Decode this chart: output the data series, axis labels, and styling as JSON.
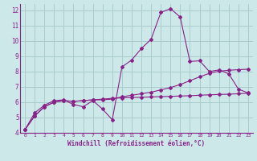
{
  "xlabel": "Windchill (Refroidissement éolien,°C)",
  "background_color": "#cce8e8",
  "grid_color": "#aacccc",
  "line_color": "#882288",
  "xlim": [
    -0.5,
    23.5
  ],
  "ylim": [
    4,
    12.4
  ],
  "xticks": [
    0,
    1,
    2,
    3,
    4,
    5,
    6,
    7,
    8,
    9,
    10,
    11,
    12,
    13,
    14,
    15,
    16,
    17,
    18,
    19,
    20,
    21,
    22,
    23
  ],
  "yticks": [
    4,
    5,
    6,
    7,
    8,
    9,
    10,
    11,
    12
  ],
  "series1_x": [
    0,
    1,
    2,
    3,
    4,
    5,
    6,
    7,
    8,
    9,
    10,
    11,
    12,
    13,
    14,
    15,
    16,
    17,
    18,
    19,
    20,
    21,
    22,
    23
  ],
  "series1_y": [
    4.2,
    5.3,
    5.8,
    6.1,
    6.15,
    5.85,
    5.7,
    6.1,
    5.55,
    4.85,
    8.3,
    8.75,
    9.5,
    10.1,
    11.85,
    12.1,
    11.55,
    8.65,
    8.7,
    8.0,
    8.1,
    7.85,
    6.85,
    6.6
  ],
  "series2_x": [
    0,
    1,
    2,
    3,
    4,
    5,
    6,
    7,
    8,
    9,
    10,
    11,
    12,
    13,
    14,
    15,
    16,
    17,
    18,
    19,
    20,
    21,
    22,
    23
  ],
  "series2_y": [
    4.2,
    5.1,
    5.7,
    6.0,
    6.1,
    6.05,
    6.1,
    6.15,
    6.15,
    6.2,
    6.35,
    6.45,
    6.55,
    6.65,
    6.8,
    6.95,
    7.15,
    7.4,
    7.65,
    7.88,
    8.02,
    8.08,
    8.12,
    8.15
  ],
  "series3_x": [
    0,
    1,
    2,
    3,
    4,
    5,
    6,
    7,
    8,
    9,
    10,
    11,
    12,
    13,
    14,
    15,
    16,
    17,
    18,
    19,
    20,
    21,
    22,
    23
  ],
  "series3_y": [
    4.2,
    5.1,
    5.7,
    6.0,
    6.1,
    6.05,
    6.1,
    6.15,
    6.2,
    6.25,
    6.28,
    6.3,
    6.32,
    6.34,
    6.36,
    6.38,
    6.4,
    6.42,
    6.45,
    6.48,
    6.5,
    6.52,
    6.55,
    6.58
  ]
}
